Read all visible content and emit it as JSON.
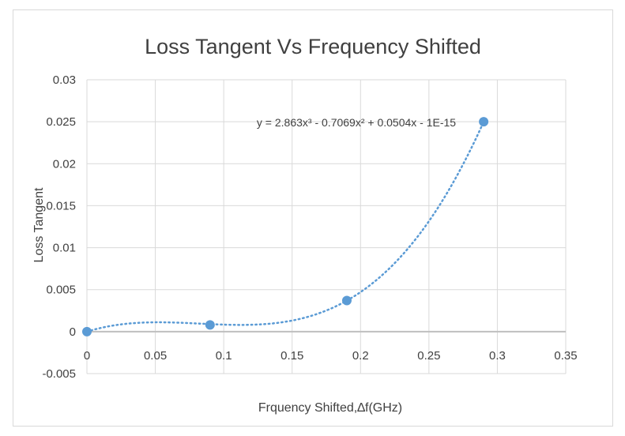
{
  "chart_data": {
    "type": "scatter",
    "title": "Loss Tangent Vs Frequency Shifted",
    "xlabel": "Frquency Shifted,∆f(GHz)",
    "ylabel": "Loss Tangent",
    "xlim": [
      0,
      0.35
    ],
    "ylim": [
      -0.005,
      0.03
    ],
    "x_ticks": [
      0,
      0.05,
      0.1,
      0.15,
      0.2,
      0.25,
      0.3,
      0.35
    ],
    "x_tick_labels": [
      "0",
      "0.05",
      "0.1",
      "0.15",
      "0.2",
      "0.25",
      "0.3",
      "0.35"
    ],
    "y_ticks": [
      -0.005,
      0,
      0.005,
      0.01,
      0.015,
      0.02,
      0.025,
      0.03
    ],
    "y_tick_labels": [
      "-0.005",
      "0",
      "0.005",
      "0.01",
      "0.015",
      "0.02",
      "0.025",
      "0.03"
    ],
    "grid": true,
    "series": [
      {
        "name": "Loss Tangent",
        "x": [
          0,
          0.09,
          0.19,
          0.29
        ],
        "y": [
          0,
          0.0008,
          0.0037,
          0.025
        ],
        "color": "#5b9bd5"
      }
    ],
    "trendline": {
      "type": "polynomial-3",
      "equation": "y = 2.863x³ - 0.7069x² + 0.0504x - 1E-15",
      "coefficients": [
        2.863,
        -0.7069,
        0.0504,
        0
      ],
      "color": "#5b9bd5",
      "style": "dotted"
    }
  }
}
